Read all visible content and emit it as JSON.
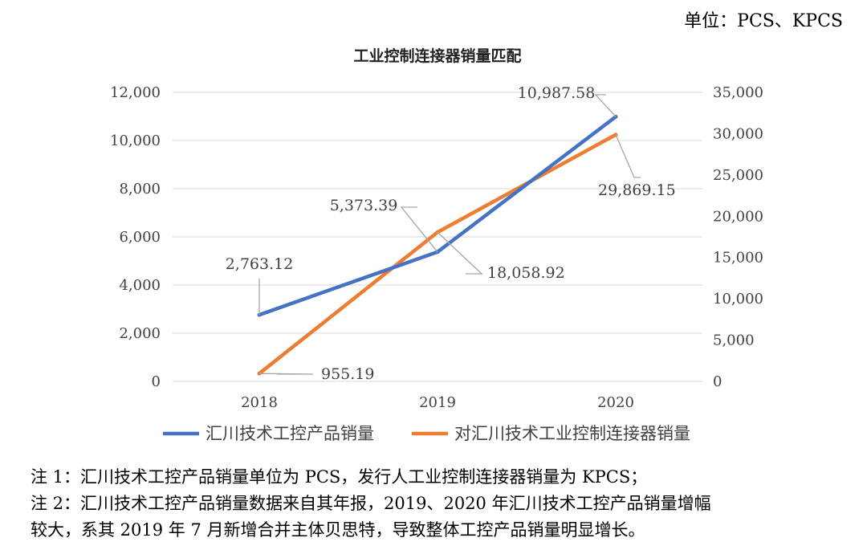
{
  "unit_note": "单位：PCS、KPCS",
  "chart_data": {
    "type": "line",
    "title": "工业控制连接器销量匹配",
    "categories": [
      "2018",
      "2019",
      "2020"
    ],
    "series": [
      {
        "name": "汇川技术工控产品销量",
        "axis": "left",
        "color": "#4472C4",
        "values": [
          2763.12,
          5373.39,
          10987.58
        ],
        "labels": [
          "2,763.12",
          "5,373.39",
          "10,987.58"
        ]
      },
      {
        "name": "对汇川技术工业控制连接器销量",
        "axis": "right",
        "color": "#ED7D31",
        "values": [
          955.19,
          18058.92,
          29869.15
        ],
        "labels": [
          "955.19",
          "18,058.92",
          "29,869.15"
        ]
      }
    ],
    "y_left": {
      "lim": [
        0,
        12000
      ],
      "ticks": [
        "0",
        "2,000",
        "4,000",
        "6,000",
        "8,000",
        "10,000",
        "12,000"
      ]
    },
    "y_right": {
      "lim": [
        0,
        35000
      ],
      "ticks": [
        "0",
        "5,000",
        "10,000",
        "15,000",
        "20,000",
        "25,000",
        "30,000",
        "35,000"
      ]
    },
    "grid": true,
    "legend": "bottom"
  },
  "notes": [
    "注 1：汇川技术工控产品销量单位为 PCS，发行人工业控制连接器销量为 KPCS；",
    "注  2：汇川技术工控产品销量数据来自其年报，2019、2020 年汇川技术工控产品销量增幅",
    "较大，系其 2019 年 7 月新增合并主体贝思特，导致整体工控产品销量明显增长。"
  ]
}
